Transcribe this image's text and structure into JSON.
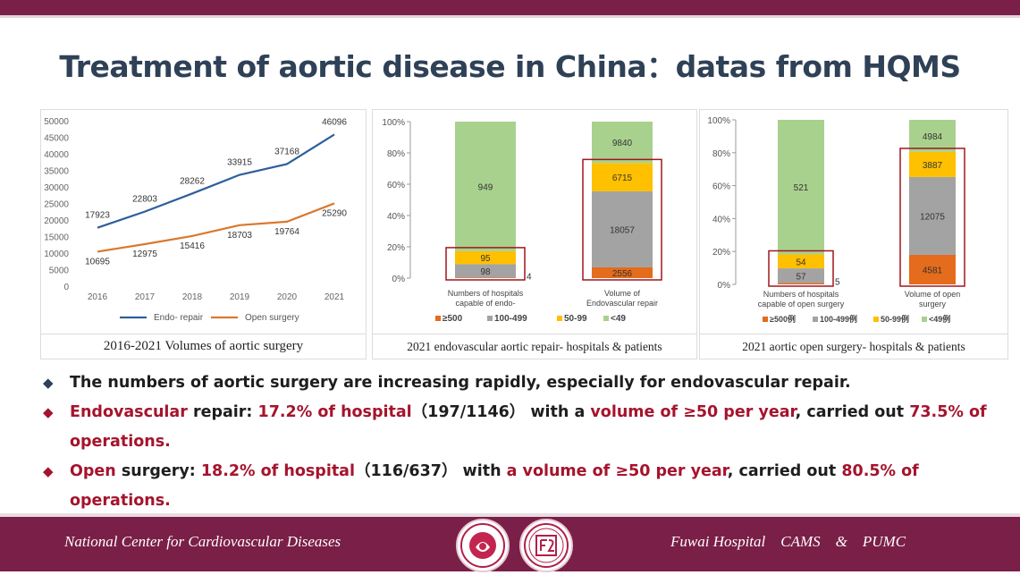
{
  "title": "Treatment of aortic disease in China：datas from HQMS",
  "chart_data": [
    {
      "type": "line",
      "title": "2016-2021 Volumes of aortic surgery",
      "categories": [
        "2016",
        "2017",
        "2018",
        "2019",
        "2020",
        "2021"
      ],
      "y_ticks": [
        "0",
        "5000",
        "10000",
        "15000",
        "20000",
        "25000",
        "30000",
        "35000",
        "40000",
        "45000",
        "50000"
      ],
      "ylim": [
        0,
        50000
      ],
      "legend_position": "bottom",
      "series": [
        {
          "name": "Endo- repair",
          "color": "#2e5f9a",
          "values": [
            17923,
            22803,
            28262,
            33915,
            37168,
            46096
          ],
          "labels": [
            "17923",
            "22803",
            "28262",
            "33915",
            "37168",
            "46096"
          ]
        },
        {
          "name": "Open surgery",
          "color": "#d9782d",
          "values": [
            10695,
            12975,
            15416,
            18703,
            19764,
            25290
          ],
          "labels": [
            "10695",
            "12975",
            "15416",
            "18703",
            "19764",
            "25290"
          ]
        }
      ]
    },
    {
      "type": "bar",
      "stacked": "percent",
      "title": "2021 endovascular aortic repair- hospitals & patients",
      "y_ticks": [
        "0%",
        "20%",
        "40%",
        "60%",
        "80%",
        "100%"
      ],
      "categories": [
        "Numbers of hospitals capable of endo-",
        "Volume of Endovascular repair"
      ],
      "category_lines": [
        [
          "Numbers of hospitals",
          "capable of endo-"
        ],
        [
          "Volume of",
          "Endovascular repair"
        ]
      ],
      "legend_position": "bottom",
      "series": [
        {
          "name": "≥500",
          "color": "#e46c1c",
          "values": [
            4,
            2556
          ],
          "labels": [
            "4",
            "2556"
          ]
        },
        {
          "name": "100-499",
          "color": "#a3a3a3",
          "values": [
            98,
            18057
          ],
          "labels": [
            "98",
            "18057"
          ]
        },
        {
          "name": "50-99",
          "color": "#ffc000",
          "values": [
            95,
            6715
          ],
          "labels": [
            "95",
            "6715"
          ]
        },
        {
          "name": "<49",
          "color": "#a9d18e",
          "values": [
            949,
            9840
          ],
          "labels": [
            "949",
            "9840"
          ]
        }
      ]
    },
    {
      "type": "bar",
      "stacked": "percent",
      "title": "2021 aortic open surgery- hospitals & patients",
      "y_ticks": [
        "0%",
        "20%",
        "40%",
        "60%",
        "80%",
        "100%"
      ],
      "categories": [
        "Numbers of hospitals capable of open surgery",
        "Volume of open surgery"
      ],
      "category_lines": [
        [
          "Numbers of hospitals",
          "capable of open surgery"
        ],
        [
          "Volume of open",
          "surgery"
        ]
      ],
      "legend_position": "bottom",
      "series": [
        {
          "name": "≥500例",
          "color": "#e46c1c",
          "values": [
            5,
            4581
          ],
          "labels": [
            "5",
            "4581"
          ]
        },
        {
          "name": "100-499例",
          "color": "#a3a3a3",
          "values": [
            57,
            12075
          ],
          "labels": [
            "57",
            "12075"
          ]
        },
        {
          "name": "50-99例",
          "color": "#ffc000",
          "values": [
            54,
            3887
          ],
          "labels": [
            "54",
            "3887"
          ]
        },
        {
          "name": "<49例",
          "color": "#a9d18e",
          "values": [
            521,
            4984
          ],
          "labels": [
            "521",
            "4984"
          ]
        }
      ]
    }
  ],
  "bullets": [
    {
      "marker": "◆",
      "marker_color": "#2f4157",
      "parts": [
        {
          "t": "The numbers of aortic surgery are increasing rapidly, especially for endovascular repair.",
          "red": false
        }
      ]
    },
    {
      "marker": "◆",
      "marker_color": "#a5142d",
      "parts": [
        {
          "t": "Endovascular",
          "red": true
        },
        {
          "t": " repair: ",
          "red": false
        },
        {
          "t": "17.2% of hospital",
          "red": true
        },
        {
          "t": "（197/1146） with a ",
          "red": false
        },
        {
          "t": "volume of ≥50 per year",
          "red": true
        },
        {
          "t": ", carried out ",
          "red": false
        },
        {
          "t": "73.5% of operations.",
          "red": true
        }
      ]
    },
    {
      "marker": "◆",
      "marker_color": "#a5142d",
      "parts": [
        {
          "t": "Open",
          "red": true
        },
        {
          "t": " surgery: ",
          "red": false
        },
        {
          "t": "18.2% of hospital",
          "red": true
        },
        {
          "t": "（116/637） with ",
          "red": false
        },
        {
          "t": "a volume of ≥50 per year",
          "red": true
        },
        {
          "t": ", carried out ",
          "red": false
        },
        {
          "t": "80.5% of operations.",
          "red": true
        }
      ]
    }
  ],
  "footer": {
    "left": "National Center for Cardiovascular Diseases",
    "right": "Fuwai Hospital    CAMS    &    PUMC"
  }
}
